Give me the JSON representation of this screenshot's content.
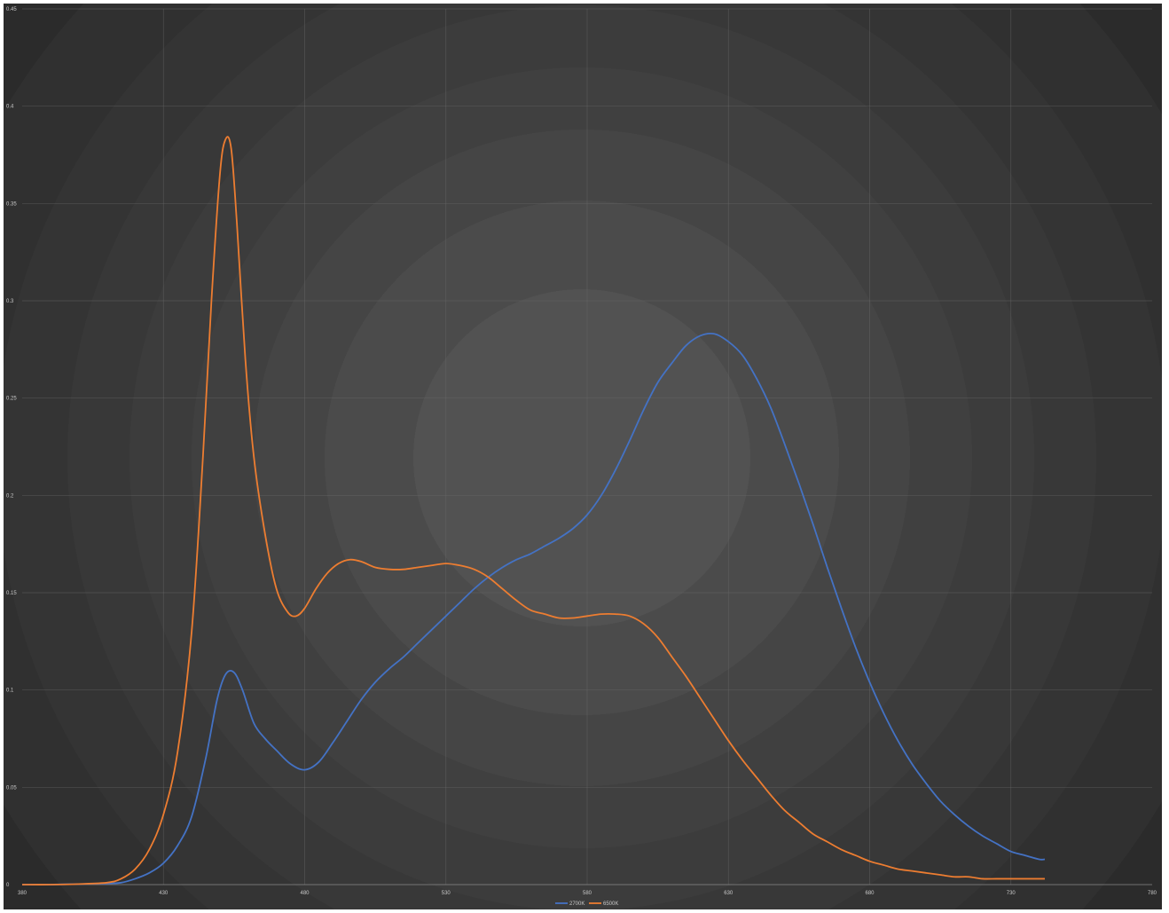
{
  "chart_data": {
    "type": "line",
    "title": "",
    "xlabel": "",
    "ylabel": "",
    "xlim": [
      380,
      780
    ],
    "ylim": [
      0,
      0.45
    ],
    "x_ticks": [
      "380",
      "430",
      "480",
      "530",
      "580",
      "630",
      "680",
      "730",
      "780"
    ],
    "y_ticks": [
      "0",
      "0.05",
      "0.1",
      "0.15",
      "0.2",
      "0.25",
      "0.3",
      "0.35",
      "0.4",
      "0.45"
    ],
    "grid": true,
    "legend_position": "bottom",
    "series": [
      {
        "name": "2700K",
        "color": "#4472c4",
        "points": [
          [
            380,
            0.0
          ],
          [
            390,
            0.0
          ],
          [
            400,
            0.0003
          ],
          [
            410,
            0.0006
          ],
          [
            415,
            0.001
          ],
          [
            420,
            0.003
          ],
          [
            425,
            0.006
          ],
          [
            430,
            0.011
          ],
          [
            435,
            0.02
          ],
          [
            440,
            0.035
          ],
          [
            445,
            0.065
          ],
          [
            449,
            0.095
          ],
          [
            452,
            0.108
          ],
          [
            455,
            0.109
          ],
          [
            458,
            0.1
          ],
          [
            462,
            0.083
          ],
          [
            466,
            0.075
          ],
          [
            470,
            0.069
          ],
          [
            475,
            0.062
          ],
          [
            480,
            0.059
          ],
          [
            485,
            0.063
          ],
          [
            490,
            0.073
          ],
          [
            495,
            0.084
          ],
          [
            500,
            0.095
          ],
          [
            505,
            0.104
          ],
          [
            510,
            0.111
          ],
          [
            515,
            0.117
          ],
          [
            520,
            0.124
          ],
          [
            525,
            0.131
          ],
          [
            530,
            0.138
          ],
          [
            535,
            0.145
          ],
          [
            540,
            0.152
          ],
          [
            545,
            0.158
          ],
          [
            550,
            0.163
          ],
          [
            555,
            0.167
          ],
          [
            560,
            0.17
          ],
          [
            565,
            0.174
          ],
          [
            570,
            0.178
          ],
          [
            575,
            0.183
          ],
          [
            580,
            0.19
          ],
          [
            585,
            0.2
          ],
          [
            590,
            0.213
          ],
          [
            595,
            0.228
          ],
          [
            600,
            0.244
          ],
          [
            605,
            0.258
          ],
          [
            610,
            0.268
          ],
          [
            615,
            0.277
          ],
          [
            620,
            0.282
          ],
          [
            625,
            0.283
          ],
          [
            630,
            0.279
          ],
          [
            635,
            0.272
          ],
          [
            640,
            0.26
          ],
          [
            645,
            0.245
          ],
          [
            650,
            0.226
          ],
          [
            655,
            0.206
          ],
          [
            660,
            0.185
          ],
          [
            665,
            0.163
          ],
          [
            670,
            0.142
          ],
          [
            675,
            0.122
          ],
          [
            680,
            0.104
          ],
          [
            685,
            0.088
          ],
          [
            690,
            0.074
          ],
          [
            695,
            0.062
          ],
          [
            700,
            0.052
          ],
          [
            705,
            0.043
          ],
          [
            710,
            0.036
          ],
          [
            715,
            0.03
          ],
          [
            720,
            0.025
          ],
          [
            725,
            0.021
          ],
          [
            730,
            0.017
          ],
          [
            735,
            0.015
          ],
          [
            740,
            0.013
          ],
          [
            742,
            0.013
          ]
        ]
      },
      {
        "name": "6500K",
        "color": "#ed7d31",
        "points": [
          [
            380,
            0.0
          ],
          [
            390,
            0.0
          ],
          [
            400,
            0.0003
          ],
          [
            410,
            0.001
          ],
          [
            415,
            0.003
          ],
          [
            420,
            0.008
          ],
          [
            425,
            0.018
          ],
          [
            430,
            0.036
          ],
          [
            435,
            0.068
          ],
          [
            440,
            0.13
          ],
          [
            444,
            0.22
          ],
          [
            447,
            0.3
          ],
          [
            450,
            0.365
          ],
          [
            452,
            0.383
          ],
          [
            454,
            0.378
          ],
          [
            456,
            0.34
          ],
          [
            459,
            0.27
          ],
          [
            462,
            0.22
          ],
          [
            466,
            0.18
          ],
          [
            470,
            0.152
          ],
          [
            474,
            0.14
          ],
          [
            477,
            0.138
          ],
          [
            480,
            0.142
          ],
          [
            484,
            0.152
          ],
          [
            488,
            0.16
          ],
          [
            492,
            0.165
          ],
          [
            496,
            0.167
          ],
          [
            500,
            0.166
          ],
          [
            505,
            0.163
          ],
          [
            510,
            0.162
          ],
          [
            515,
            0.162
          ],
          [
            520,
            0.163
          ],
          [
            525,
            0.164
          ],
          [
            530,
            0.165
          ],
          [
            535,
            0.164
          ],
          [
            540,
            0.162
          ],
          [
            545,
            0.158
          ],
          [
            550,
            0.152
          ],
          [
            555,
            0.146
          ],
          [
            560,
            0.141
          ],
          [
            565,
            0.139
          ],
          [
            570,
            0.137
          ],
          [
            575,
            0.137
          ],
          [
            580,
            0.138
          ],
          [
            585,
            0.139
          ],
          [
            590,
            0.139
          ],
          [
            595,
            0.138
          ],
          [
            600,
            0.134
          ],
          [
            605,
            0.127
          ],
          [
            610,
            0.117
          ],
          [
            615,
            0.107
          ],
          [
            620,
            0.096
          ],
          [
            625,
            0.085
          ],
          [
            630,
            0.074
          ],
          [
            635,
            0.064
          ],
          [
            640,
            0.055
          ],
          [
            645,
            0.046
          ],
          [
            650,
            0.038
          ],
          [
            655,
            0.032
          ],
          [
            660,
            0.026
          ],
          [
            665,
            0.022
          ],
          [
            670,
            0.018
          ],
          [
            675,
            0.015
          ],
          [
            680,
            0.012
          ],
          [
            685,
            0.01
          ],
          [
            690,
            0.008
          ],
          [
            695,
            0.007
          ],
          [
            700,
            0.006
          ],
          [
            705,
            0.005
          ],
          [
            710,
            0.004
          ],
          [
            715,
            0.004
          ],
          [
            720,
            0.003
          ],
          [
            725,
            0.003
          ],
          [
            730,
            0.003
          ],
          [
            735,
            0.003
          ],
          [
            740,
            0.003
          ],
          [
            742,
            0.003
          ]
        ]
      }
    ]
  }
}
